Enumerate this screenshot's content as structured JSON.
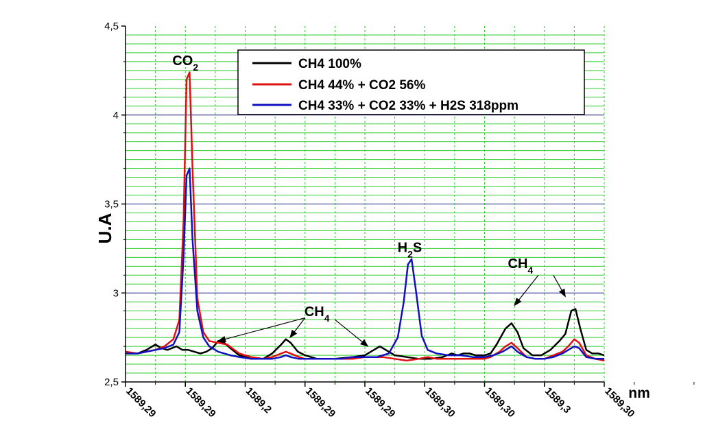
{
  "chart_data": {
    "type": "line",
    "xlabel": "nm",
    "ylabel": "U.A",
    "ylim": [
      2.5,
      4.5
    ],
    "yticks": [
      {
        "value": 2.5,
        "label": "2,5"
      },
      {
        "value": 3.0,
        "label": "3"
      },
      {
        "value": 3.5,
        "label": "3,5"
      },
      {
        "value": 4.0,
        "label": "4"
      },
      {
        "value": 4.5,
        "label": "4,5"
      }
    ],
    "xlim": [
      0,
      8
    ],
    "xticks": [
      {
        "value": 0,
        "label": "1589,29"
      },
      {
        "value": 1,
        "label": "1589,29"
      },
      {
        "value": 2,
        "label": "1589,2"
      },
      {
        "value": 3,
        "label": "1589,29"
      },
      {
        "value": 4,
        "label": "1589,29"
      },
      {
        "value": 5,
        "label": "1589,30"
      },
      {
        "value": 6,
        "label": "1589,30"
      },
      {
        "value": 7,
        "label": "1589,3"
      },
      {
        "value": 8,
        "label": "1589,30"
      }
    ],
    "grid": true,
    "legend_position": "top-center",
    "colors": {
      "series1": "#000000",
      "series2": "#e01010",
      "series3": "#1010c0",
      "grid_minor": "#2ecc2e",
      "grid_major": "#1a1a8c"
    },
    "series": [
      {
        "name": "CH4 100%",
        "color": "#000000",
        "points": [
          [
            0,
            2.66
          ],
          [
            0.2,
            2.66
          ],
          [
            0.35,
            2.68
          ],
          [
            0.5,
            2.71
          ],
          [
            0.6,
            2.69
          ],
          [
            0.7,
            2.68
          ],
          [
            0.85,
            2.7
          ],
          [
            0.95,
            2.68
          ],
          [
            1.05,
            2.68
          ],
          [
            1.15,
            2.67
          ],
          [
            1.25,
            2.66
          ],
          [
            1.35,
            2.67
          ],
          [
            1.45,
            2.69
          ],
          [
            1.55,
            2.73
          ],
          [
            1.65,
            2.72
          ],
          [
            1.75,
            2.69
          ],
          [
            1.9,
            2.65
          ],
          [
            2.1,
            2.63
          ],
          [
            2.3,
            2.63
          ],
          [
            2.45,
            2.66
          ],
          [
            2.6,
            2.71
          ],
          [
            2.68,
            2.74
          ],
          [
            2.76,
            2.72
          ],
          [
            2.88,
            2.67
          ],
          [
            3.0,
            2.65
          ],
          [
            3.2,
            2.63
          ],
          [
            3.5,
            2.63
          ],
          [
            3.8,
            2.64
          ],
          [
            4.0,
            2.65
          ],
          [
            4.15,
            2.68
          ],
          [
            4.25,
            2.7
          ],
          [
            4.35,
            2.68
          ],
          [
            4.5,
            2.65
          ],
          [
            4.7,
            2.64
          ],
          [
            4.9,
            2.63
          ],
          [
            5.1,
            2.63
          ],
          [
            5.3,
            2.64
          ],
          [
            5.45,
            2.66
          ],
          [
            5.55,
            2.65
          ],
          [
            5.65,
            2.66
          ],
          [
            5.75,
            2.66
          ],
          [
            5.85,
            2.65
          ],
          [
            6.0,
            2.65
          ],
          [
            6.1,
            2.66
          ],
          [
            6.2,
            2.71
          ],
          [
            6.35,
            2.8
          ],
          [
            6.45,
            2.83
          ],
          [
            6.55,
            2.78
          ],
          [
            6.65,
            2.69
          ],
          [
            6.8,
            2.65
          ],
          [
            6.95,
            2.65
          ],
          [
            7.1,
            2.68
          ],
          [
            7.25,
            2.73
          ],
          [
            7.35,
            2.77
          ],
          [
            7.45,
            2.9
          ],
          [
            7.52,
            2.91
          ],
          [
            7.6,
            2.8
          ],
          [
            7.7,
            2.68
          ],
          [
            7.8,
            2.66
          ],
          [
            7.9,
            2.66
          ],
          [
            8.0,
            2.65
          ]
        ]
      },
      {
        "name": "CH4 44% + CO2 56%",
        "color": "#e01010",
        "points": [
          [
            0,
            2.67
          ],
          [
            0.2,
            2.66
          ],
          [
            0.35,
            2.67
          ],
          [
            0.5,
            2.68
          ],
          [
            0.65,
            2.7
          ],
          [
            0.8,
            2.74
          ],
          [
            0.9,
            2.85
          ],
          [
            0.97,
            3.4
          ],
          [
            1.02,
            4.2
          ],
          [
            1.07,
            4.24
          ],
          [
            1.12,
            3.7
          ],
          [
            1.2,
            2.97
          ],
          [
            1.3,
            2.78
          ],
          [
            1.4,
            2.73
          ],
          [
            1.55,
            2.72
          ],
          [
            1.7,
            2.71
          ],
          [
            1.9,
            2.66
          ],
          [
            2.1,
            2.64
          ],
          [
            2.3,
            2.63
          ],
          [
            2.45,
            2.64
          ],
          [
            2.6,
            2.66
          ],
          [
            2.68,
            2.67
          ],
          [
            2.76,
            2.66
          ],
          [
            2.9,
            2.64
          ],
          [
            3.0,
            2.63
          ],
          [
            3.2,
            2.63
          ],
          [
            3.5,
            2.63
          ],
          [
            3.8,
            2.63
          ],
          [
            4.0,
            2.64
          ],
          [
            4.15,
            2.64
          ],
          [
            4.3,
            2.64
          ],
          [
            4.5,
            2.63
          ],
          [
            4.7,
            2.62
          ],
          [
            4.9,
            2.63
          ],
          [
            5.05,
            2.64
          ],
          [
            5.2,
            2.63
          ],
          [
            5.4,
            2.63
          ],
          [
            5.6,
            2.63
          ],
          [
            5.8,
            2.63
          ],
          [
            6.0,
            2.63
          ],
          [
            6.1,
            2.64
          ],
          [
            6.25,
            2.67
          ],
          [
            6.35,
            2.7
          ],
          [
            6.45,
            2.72
          ],
          [
            6.55,
            2.69
          ],
          [
            6.7,
            2.64
          ],
          [
            6.85,
            2.63
          ],
          [
            7.0,
            2.63
          ],
          [
            7.15,
            2.65
          ],
          [
            7.3,
            2.67
          ],
          [
            7.4,
            2.7
          ],
          [
            7.5,
            2.74
          ],
          [
            7.58,
            2.72
          ],
          [
            7.7,
            2.65
          ],
          [
            7.85,
            2.63
          ],
          [
            8.0,
            2.62
          ]
        ]
      },
      {
        "name": "CH4 33% + CO2 33% + H2S 318ppm",
        "color": "#1010c0",
        "points": [
          [
            0,
            2.66
          ],
          [
            0.2,
            2.66
          ],
          [
            0.35,
            2.67
          ],
          [
            0.5,
            2.68
          ],
          [
            0.65,
            2.69
          ],
          [
            0.8,
            2.71
          ],
          [
            0.9,
            2.78
          ],
          [
            0.97,
            3.2
          ],
          [
            1.02,
            3.66
          ],
          [
            1.07,
            3.7
          ],
          [
            1.12,
            3.3
          ],
          [
            1.2,
            2.9
          ],
          [
            1.3,
            2.75
          ],
          [
            1.4,
            2.7
          ],
          [
            1.55,
            2.67
          ],
          [
            1.75,
            2.65
          ],
          [
            1.9,
            2.64
          ],
          [
            2.1,
            2.63
          ],
          [
            2.3,
            2.63
          ],
          [
            2.45,
            2.63
          ],
          [
            2.6,
            2.64
          ],
          [
            2.68,
            2.65
          ],
          [
            2.76,
            2.64
          ],
          [
            2.9,
            2.63
          ],
          [
            3.0,
            2.63
          ],
          [
            3.3,
            2.63
          ],
          [
            3.6,
            2.63
          ],
          [
            3.8,
            2.64
          ],
          [
            4.0,
            2.64
          ],
          [
            4.2,
            2.64
          ],
          [
            4.4,
            2.66
          ],
          [
            4.55,
            2.75
          ],
          [
            4.65,
            2.95
          ],
          [
            4.72,
            3.16
          ],
          [
            4.78,
            3.19
          ],
          [
            4.85,
            3.02
          ],
          [
            4.95,
            2.76
          ],
          [
            5.05,
            2.68
          ],
          [
            5.2,
            2.66
          ],
          [
            5.4,
            2.65
          ],
          [
            5.6,
            2.65
          ],
          [
            5.8,
            2.64
          ],
          [
            6.0,
            2.64
          ],
          [
            6.15,
            2.65
          ],
          [
            6.3,
            2.67
          ],
          [
            6.45,
            2.7
          ],
          [
            6.55,
            2.67
          ],
          [
            6.7,
            2.64
          ],
          [
            6.85,
            2.63
          ],
          [
            7.0,
            2.63
          ],
          [
            7.15,
            2.64
          ],
          [
            7.3,
            2.66
          ],
          [
            7.4,
            2.68
          ],
          [
            7.5,
            2.7
          ],
          [
            7.58,
            2.69
          ],
          [
            7.7,
            2.64
          ],
          [
            7.85,
            2.63
          ],
          [
            8.0,
            2.63
          ]
        ]
      }
    ],
    "annotations": [
      {
        "base": "CO",
        "sub": "2",
        "x": 1.0,
        "y": 4.28
      },
      {
        "base": "H",
        "sub": "2",
        "tail": "S",
        "x": 4.75,
        "y": 3.23
      },
      {
        "base": "CH",
        "sub": "4",
        "x": 3.2,
        "y": 2.87
      },
      {
        "base": "CH",
        "sub": "4",
        "x": 6.6,
        "y": 3.14
      }
    ],
    "arrows": [
      {
        "from": [
          3.0,
          2.86
        ],
        "to": [
          1.55,
          2.73
        ]
      },
      {
        "from": [
          3.0,
          2.86
        ],
        "to": [
          2.75,
          2.75
        ]
      },
      {
        "from": [
          3.5,
          2.85
        ],
        "to": [
          4.05,
          2.7
        ]
      },
      {
        "from": [
          6.9,
          3.1
        ],
        "to": [
          6.5,
          2.93
        ]
      },
      {
        "from": [
          7.15,
          3.1
        ],
        "to": [
          7.35,
          2.98
        ]
      }
    ]
  }
}
